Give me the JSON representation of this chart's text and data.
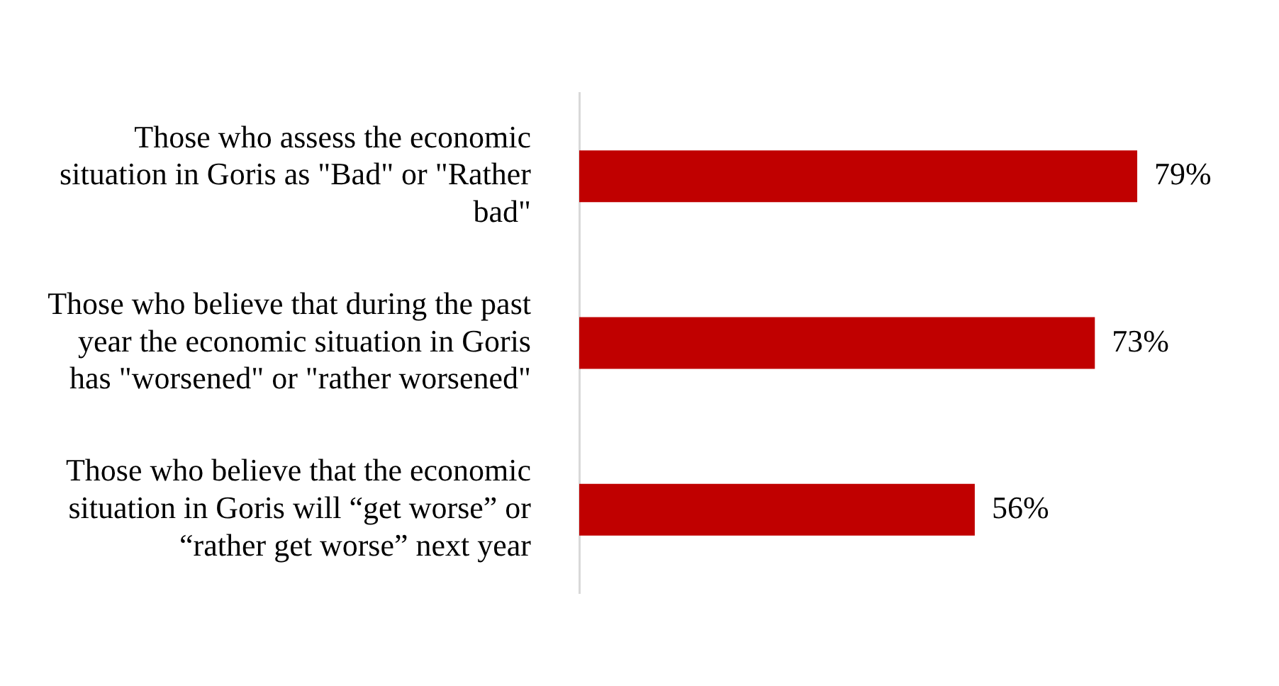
{
  "chart_data": {
    "type": "bar",
    "orientation": "horizontal",
    "categories": [
      "Those who assess the economic situation in Goris as \"Bad\" or \"Rather bad\"",
      "Those who believe that during the past year the economic situation in Goris has \"worsened\" or \"rather worsened\"",
      "Those who believe that the economic situation in Goris will “get worse” or “rather get worse” next year"
    ],
    "values": [
      79,
      73,
      56
    ],
    "color": "#c00000",
    "value_labels": [
      "79%",
      "73%",
      "56%"
    ],
    "tick_labels": "y",
    "grid": false,
    "legend": false
  }
}
